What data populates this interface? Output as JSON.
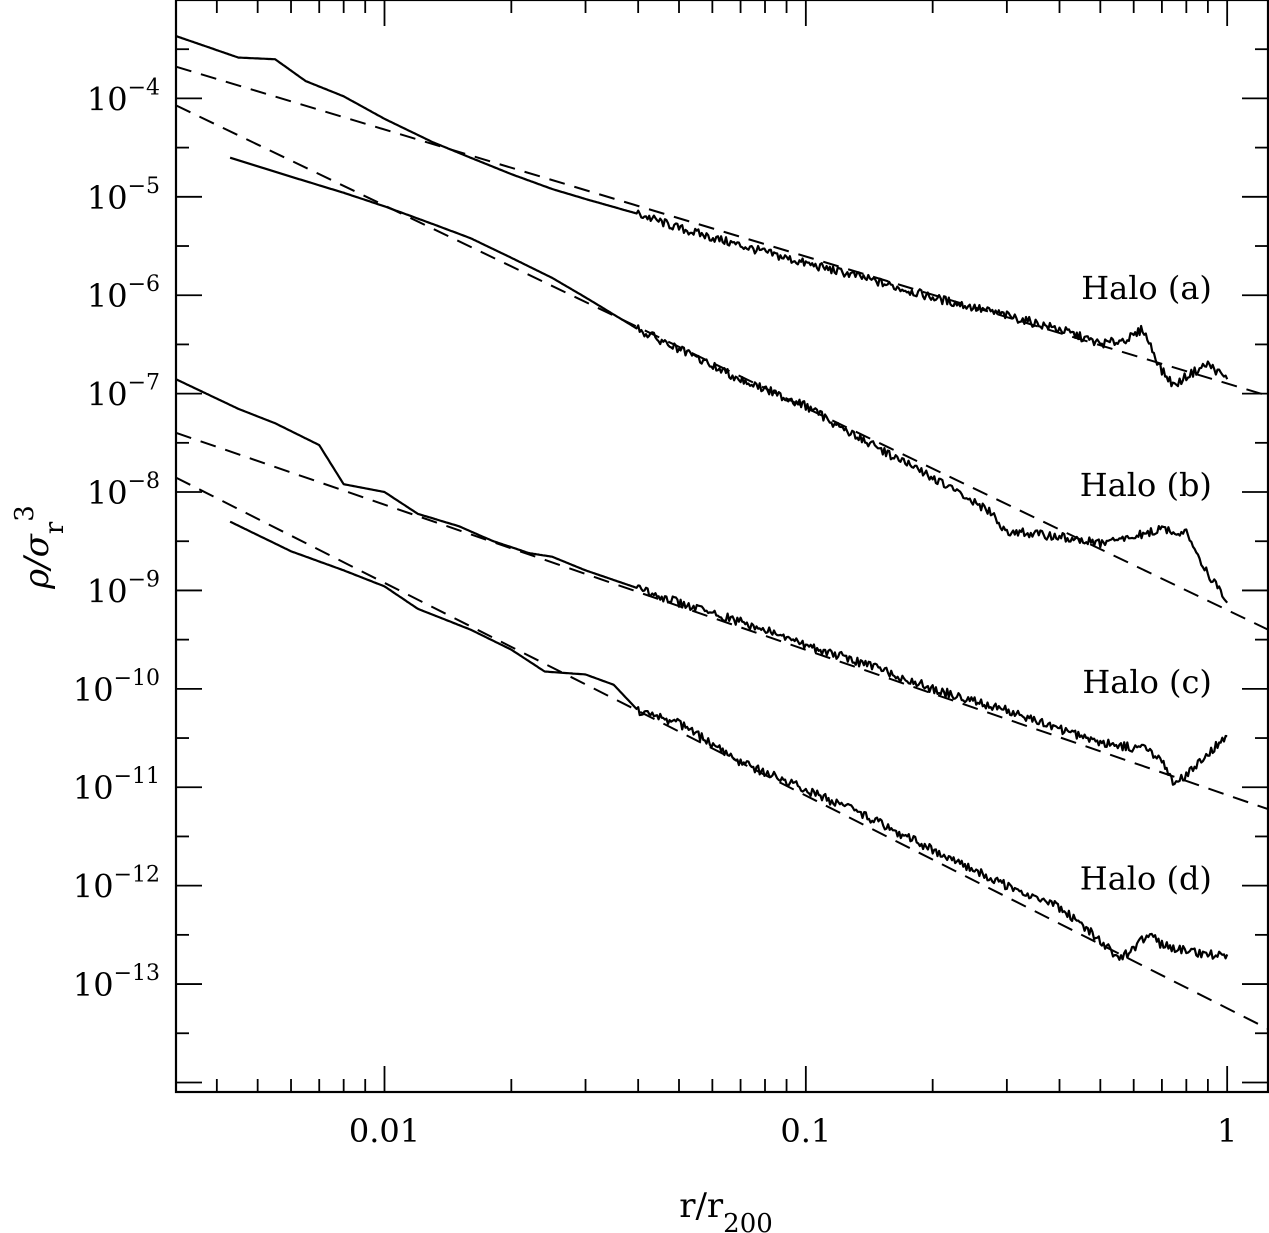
{
  "chart_data": {
    "type": "line",
    "xlabel": "r/r_200",
    "ylabel": "ρ/σ_r^3",
    "xscale": "log",
    "yscale": "log",
    "xlim": [
      0.0032,
      1.25
    ],
    "ylim": [
      8e-15,
      0.001
    ],
    "grid": false,
    "x_ticks": [
      {
        "value": 0.01,
        "label": "0.01"
      },
      {
        "value": 0.1,
        "label": "0.1"
      },
      {
        "value": 1,
        "label": "1"
      }
    ],
    "y_ticks": [
      {
        "value": 0.0001,
        "exp": "−4"
      },
      {
        "value": 1e-05,
        "exp": "−5"
      },
      {
        "value": 1e-06,
        "exp": "−6"
      },
      {
        "value": 1e-07,
        "exp": "−7"
      },
      {
        "value": 1e-08,
        "exp": "−8"
      },
      {
        "value": 1e-09,
        "exp": "−9"
      },
      {
        "value": 1e-10,
        "exp": "−10"
      },
      {
        "value": 1e-11,
        "exp": "−11"
      },
      {
        "value": 1e-12,
        "exp": "−12"
      },
      {
        "value": 1e-13,
        "exp": "−13"
      }
    ],
    "annotations": [
      {
        "text": "Halo (a)",
        "x": 0.92,
        "y": 1e-06
      },
      {
        "text": "Halo (b)",
        "x": 0.92,
        "y": 1e-08
      },
      {
        "text": "Halo (c)",
        "x": 0.92,
        "y": 1e-10
      },
      {
        "text": "Halo (d)",
        "x": 0.92,
        "y": 1e-12
      }
    ],
    "series": [
      {
        "style": "solid",
        "x": [
          0.0032,
          0.0045,
          0.0055,
          0.0065,
          0.008,
          0.01,
          0.013,
          0.016,
          0.02,
          0.025,
          0.03,
          0.04,
          0.05,
          0.07,
          0.1,
          0.13,
          0.2,
          0.3,
          0.4,
          0.5,
          0.55,
          0.6,
          0.63,
          0.7,
          0.75,
          0.8,
          0.9,
          1.0
        ],
        "y": [
          0.00043,
          0.00026,
          0.00025,
          0.00015,
          0.000105,
          6.2e-05,
          3.6e-05,
          2.5e-05,
          1.7e-05,
          1.2e-05,
          9.5e-06,
          6.7e-06,
          4.8e-06,
          3.2e-06,
          2.1e-06,
          1.6e-06,
          9.5e-07,
          6.2e-07,
          4.5e-07,
          3.2e-07,
          3.4e-07,
          3.8e-07,
          4.6e-07,
          1.7e-07,
          1.2e-07,
          1.5e-07,
          2e-07,
          1.4e-07
        ]
      },
      {
        "style": "dashed",
        "x": [
          0.0032,
          1.25
        ],
        "y": [
          0.00021,
          9.5e-08
        ]
      },
      {
        "style": "solid",
        "x": [
          0.0043,
          0.006,
          0.008,
          0.01,
          0.013,
          0.016,
          0.02,
          0.025,
          0.03,
          0.04,
          0.05,
          0.07,
          0.1,
          0.13,
          0.2,
          0.27,
          0.3,
          0.4,
          0.5,
          0.6,
          0.7,
          0.8,
          0.9,
          1.0
        ],
        "y": [
          2.5e-05,
          1.6e-05,
          1.1e-05,
          8e-06,
          5.3e-06,
          3.8e-06,
          2.4e-06,
          1.5e-06,
          9.5e-07,
          4.5e-07,
          2.8e-07,
          1.4e-07,
          7.5e-08,
          3.8e-08,
          1.4e-08,
          6.5e-09,
          4e-09,
          3.5e-09,
          3e-09,
          3.5e-09,
          4.2e-09,
          3.8e-09,
          1.5e-09,
          7.5e-10
        ]
      },
      {
        "style": "dashed",
        "x": [
          0.0032,
          1.25
        ],
        "y": [
          8.5e-05,
          4e-10
        ]
      },
      {
        "style": "solid",
        "x": [
          0.0032,
          0.0045,
          0.0055,
          0.007,
          0.008,
          0.01,
          0.012,
          0.015,
          0.018,
          0.022,
          0.025,
          0.03,
          0.04,
          0.05,
          0.07,
          0.1,
          0.15,
          0.2,
          0.3,
          0.4,
          0.5,
          0.6,
          0.65,
          0.7,
          0.75,
          0.8,
          0.9,
          1.0
        ],
        "y": [
          1.4e-07,
          7e-08,
          5e-08,
          3e-08,
          1.2e-08,
          1e-08,
          6e-09,
          4.5e-09,
          3.2e-09,
          2.4e-09,
          2.2e-09,
          1.6e-09,
          1.05e-09,
          7.5e-10,
          4.8e-10,
          2.8e-10,
          1.6e-10,
          1e-10,
          6e-11,
          3.9e-11,
          2.9e-11,
          2.5e-11,
          2.5e-11,
          1.8e-11,
          1.1e-11,
          1.3e-11,
          2.2e-11,
          3.3e-11
        ]
      },
      {
        "style": "dashed",
        "x": [
          0.0032,
          1.25
        ],
        "y": [
          4e-08,
          6e-12
        ]
      },
      {
        "style": "solid",
        "x": [
          0.0043,
          0.006,
          0.008,
          0.01,
          0.012,
          0.016,
          0.02,
          0.024,
          0.03,
          0.035,
          0.04,
          0.05,
          0.07,
          0.1,
          0.14,
          0.2,
          0.3,
          0.4,
          0.5,
          0.55,
          0.6,
          0.65,
          0.7,
          0.8,
          0.9,
          1.0
        ],
        "y": [
          5e-09,
          2.5e-09,
          1.6e-09,
          1.1e-09,
          6.5e-10,
          4e-10,
          2.5e-10,
          1.5e-10,
          1.4e-10,
          1.1e-10,
          6e-11,
          4.5e-11,
          1.8e-11,
          9.5e-12,
          5e-12,
          2.3e-12,
          1e-12,
          6e-13,
          2.8e-13,
          1.8e-13,
          2.2e-13,
          3.3e-13,
          2.5e-13,
          2.2e-13,
          2e-13,
          2e-13
        ]
      },
      {
        "style": "dashed",
        "x": [
          0.0032,
          1.25
        ],
        "y": [
          1.4e-08,
          3.5e-14
        ]
      }
    ]
  }
}
